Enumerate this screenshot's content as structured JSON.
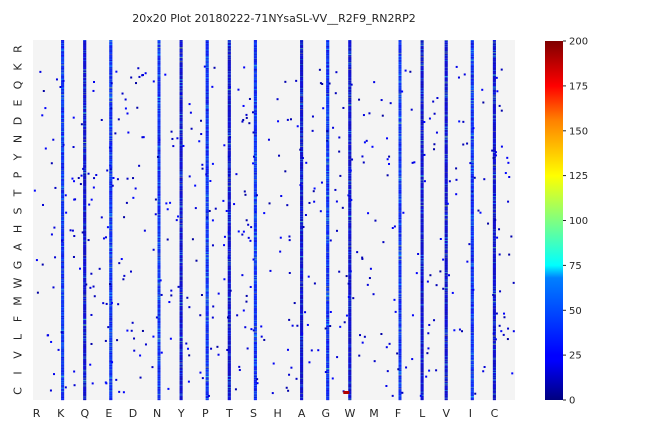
{
  "chart_data": {
    "type": "heatmap",
    "title": "20x20 Plot 20180222-71NYsaSL-VV__R2F9_RN2RP2",
    "xlabel": "",
    "ylabel": "",
    "x_categories": [
      "R",
      "K",
      "Q",
      "E",
      "D",
      "N",
      "Y",
      "P",
      "T",
      "S",
      "H",
      "A",
      "G",
      "W",
      "M",
      "F",
      "L",
      "V",
      "I",
      "C"
    ],
    "y_categories": [
      "R",
      "K",
      "Q",
      "E",
      "D",
      "N",
      "Y",
      "P",
      "T",
      "S",
      "H",
      "A",
      "G",
      "W",
      "M",
      "F",
      "L",
      "V",
      "I",
      "C"
    ],
    "colorbar": {
      "min": 0,
      "max": 200,
      "ticks": [
        "0",
        "25",
        "50",
        "75",
        "100",
        "125",
        "150",
        "175",
        "200"
      ],
      "colormap": "jet"
    },
    "background_color": "#f4f4f4",
    "dense_columns": [
      "K",
      "E",
      "N",
      "P",
      "S",
      "G",
      "F",
      "I"
    ],
    "sparse_columns": [
      "Q",
      "Y",
      "T",
      "A",
      "W",
      "L",
      "V",
      "C"
    ],
    "dense_column_typical_value": 30,
    "sparse_column_typical_value": 15,
    "scattered_cells_typical_value": 10,
    "max_observed_value": 190
  }
}
